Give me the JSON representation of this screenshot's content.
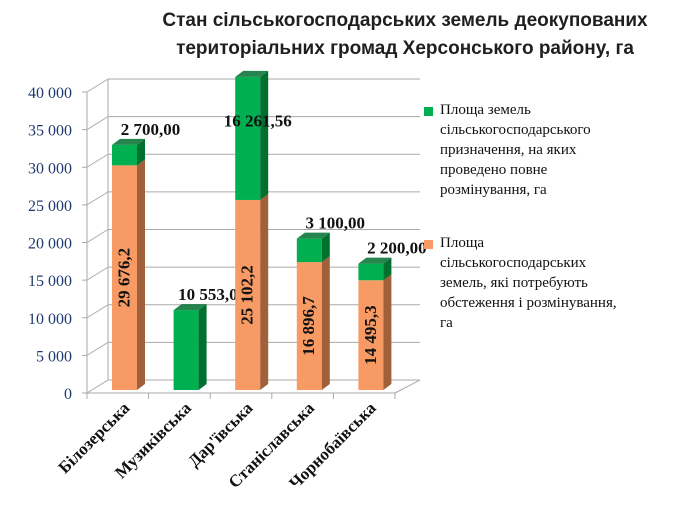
{
  "chart_data": {
    "type": "bar",
    "stacked": true,
    "title": "Стан сільськогосподарських земель деокупованих територіальних громад Херсонського району, га",
    "title_lines": [
      "Стан сільськогосподарських земель деокупованих",
      "територіальних громад Херсонського району, га"
    ],
    "categories": [
      "Білозерська",
      "Музиківська",
      "Дар'ївська",
      "Станіславська",
      "Чорнобаївська"
    ],
    "series": [
      {
        "name": "Площа сільськогосподарських земель,  які потребують обстеження і розмінування, га",
        "color": "#f79a63",
        "side": "#a0603a",
        "values": [
          29676.2,
          0,
          25102.2,
          16896.7,
          14495.3
        ],
        "labels": [
          "29 676,2",
          "",
          "25 102,2",
          "16 896,7",
          "14 495,3"
        ]
      },
      {
        "name": "Площа земель сільськогосподарського призначення, на яких проведено повне розмінування, га",
        "color": "#00b050",
        "side": "#00702f",
        "values": [
          2700,
          10553,
          16261.56,
          3100,
          2200
        ],
        "labels": [
          "2 700,00",
          "10 553,00",
          "16 261,56",
          "3 100,00",
          "2 200,00"
        ]
      }
    ],
    "legend_lines": {
      "green": [
        "Площа земель",
        "сільськогосподарського",
        "призначення, на яких",
        "проведено повне",
        "розмінування, га"
      ],
      "orange": [
        "Площа",
        "сільськогосподарських",
        "земель,  які потребують",
        "обстеження і розмінування,",
        "га"
      ]
    },
    "ylim": [
      0,
      40000
    ],
    "yticks": [
      0,
      5000,
      10000,
      15000,
      20000,
      25000,
      30000,
      35000,
      40000
    ],
    "ytick_labels": [
      "0",
      "5 000",
      "10 000",
      "15 000",
      "20 000",
      "25 000",
      "30 000",
      "35 000",
      "40 000"
    ],
    "legend_position": "right",
    "grid": true
  }
}
